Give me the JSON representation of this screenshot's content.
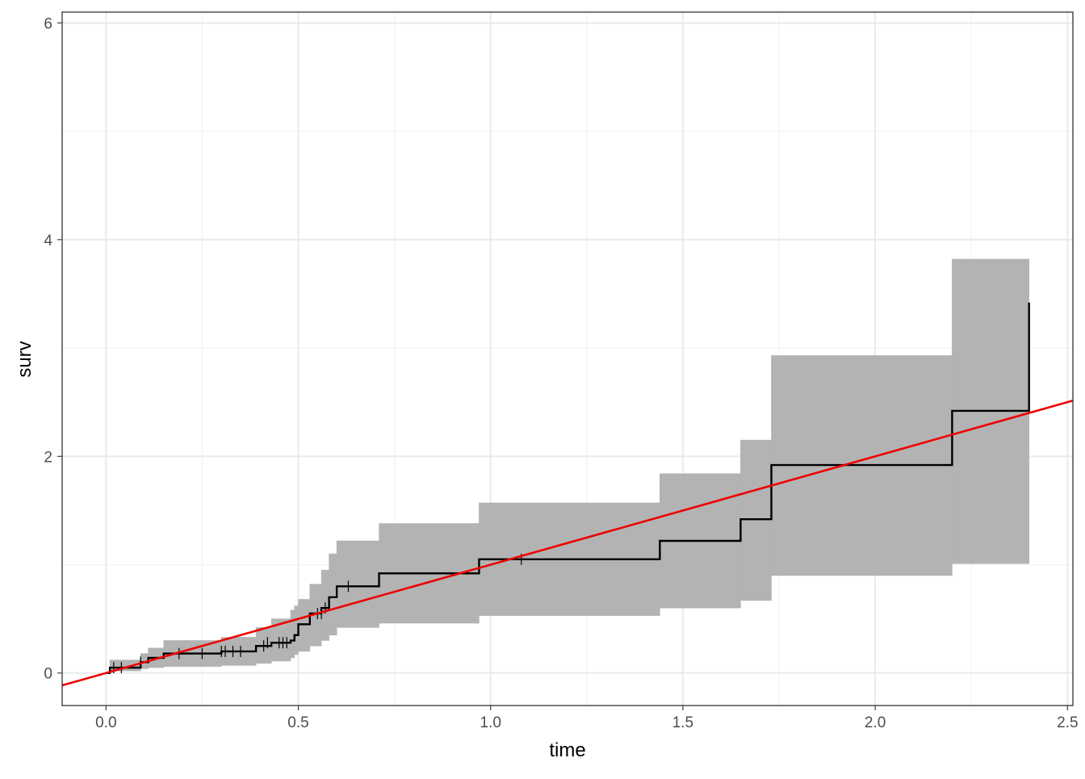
{
  "chart_data": {
    "type": "line",
    "title": "",
    "xlabel": "time",
    "ylabel": "surv",
    "xlim": [
      -0.114,
      2.514
    ],
    "ylim": [
      -0.3,
      6.1
    ],
    "x_ticks": [
      0.0,
      0.5,
      1.0,
      1.5,
      2.0,
      2.5
    ],
    "x_tick_labels": [
      "0.0",
      "0.5",
      "1.0",
      "1.5",
      "2.0",
      "2.5"
    ],
    "y_ticks": [
      0,
      2,
      4,
      6
    ],
    "y_tick_labels": [
      "0",
      "2",
      "4",
      "6"
    ],
    "grid": true,
    "legend": "none",
    "colors": {
      "step_line": "#000000",
      "ribbon": "#b3b3b3",
      "reference_line": "#ee0000",
      "panel_border": "#333333"
    },
    "step_series": {
      "x": [
        0.0,
        0.01,
        0.09,
        0.11,
        0.15,
        0.3,
        0.39,
        0.43,
        0.48,
        0.49,
        0.5,
        0.53,
        0.56,
        0.58,
        0.6,
        0.71,
        0.97,
        1.44,
        1.65,
        1.73,
        2.2,
        2.4,
        2.4
      ],
      "y": [
        0.0,
        0.05,
        0.1,
        0.14,
        0.18,
        0.2,
        0.25,
        0.28,
        0.3,
        0.35,
        0.45,
        0.55,
        0.6,
        0.7,
        0.8,
        0.92,
        1.05,
        1.22,
        1.42,
        1.92,
        2.42,
        2.42,
        3.42
      ]
    },
    "ribbon_series": {
      "x": [
        0.0,
        0.01,
        0.09,
        0.11,
        0.15,
        0.3,
        0.39,
        0.43,
        0.48,
        0.49,
        0.5,
        0.53,
        0.56,
        0.58,
        0.6,
        0.71,
        0.97,
        1.44,
        1.65,
        1.73,
        2.2,
        2.4
      ],
      "lower": [
        0.0,
        0.02,
        0.04,
        0.05,
        0.06,
        0.07,
        0.09,
        0.11,
        0.14,
        0.17,
        0.2,
        0.25,
        0.3,
        0.35,
        0.42,
        0.46,
        0.53,
        0.6,
        0.67,
        0.9,
        1.01,
        1.01
      ],
      "upper": [
        0.0,
        0.12,
        0.18,
        0.23,
        0.3,
        0.33,
        0.42,
        0.5,
        0.58,
        0.62,
        0.68,
        0.82,
        0.95,
        1.1,
        1.22,
        1.38,
        1.57,
        1.84,
        2.15,
        2.93,
        3.82,
        3.82
      ]
    },
    "censor_marks": {
      "x": [
        0.02,
        0.04,
        0.09,
        0.19,
        0.25,
        0.3,
        0.31,
        0.33,
        0.35,
        0.41,
        0.42,
        0.45,
        0.46,
        0.47,
        0.55,
        0.56,
        0.57,
        0.63,
        1.08
      ],
      "y": [
        0.05,
        0.05,
        0.1,
        0.18,
        0.18,
        0.2,
        0.2,
        0.2,
        0.2,
        0.25,
        0.28,
        0.28,
        0.28,
        0.28,
        0.55,
        0.55,
        0.6,
        0.8,
        1.05
      ]
    },
    "reference_line": {
      "intercept": 0.0,
      "slope": 1.0
    }
  }
}
